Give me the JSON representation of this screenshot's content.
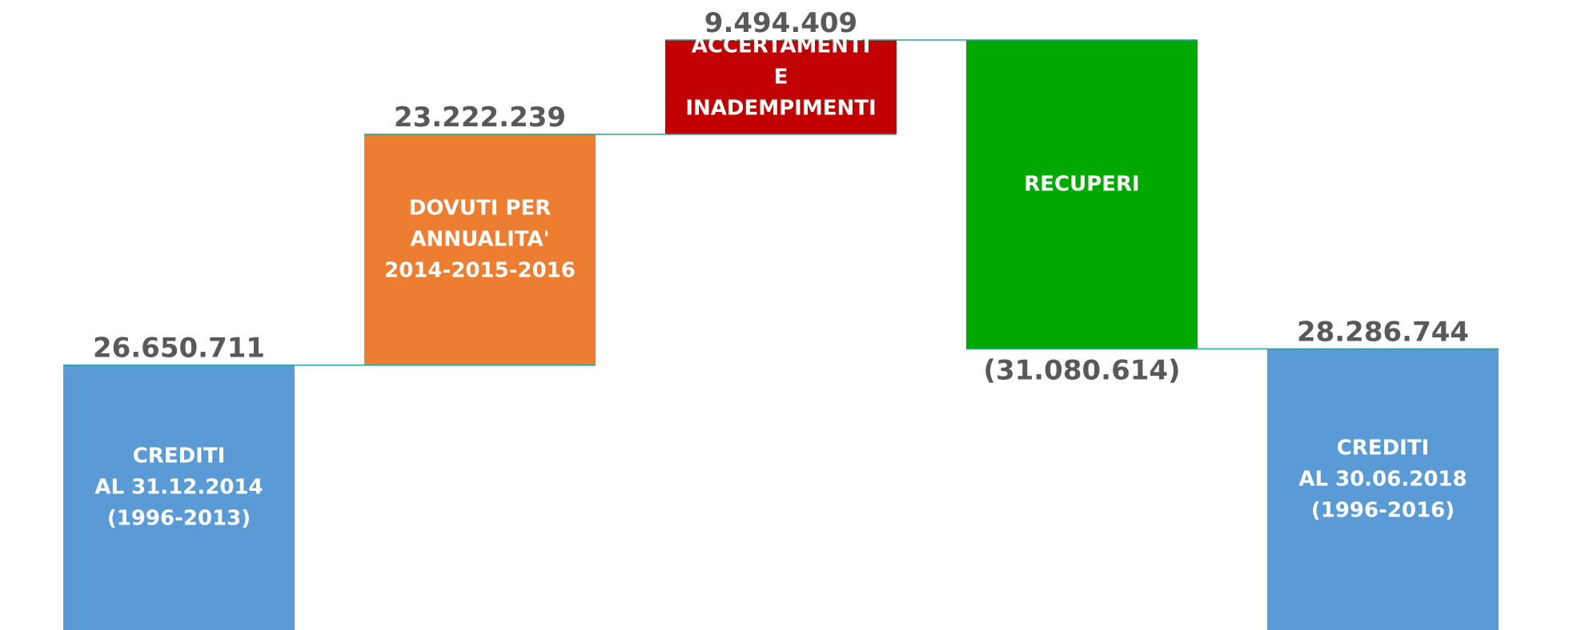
{
  "chart_data": {
    "type": "waterfall",
    "categories": [
      "CREDITI\nAL 31.12.2014\n(1996-2013)",
      "DOVUTI PER\nANNUALITA'\n2014-2015-2016",
      "ACCERTAMENTI\nE\nINADEMPIMENTI",
      "RECUPERI",
      "CREDITI\nAL 30.06.2018\n(1996-2016)"
    ],
    "values": [
      26650711,
      23222239,
      9494409,
      -31080614,
      28286744
    ],
    "value_labels": [
      "26.650.711",
      "23.222.239",
      "9.494.409",
      "(31.080.614)",
      "28.286.744"
    ],
    "totals": [
      true,
      false,
      false,
      false,
      true
    ],
    "colors": [
      "#5b9bd5",
      "#ed7d31",
      "#c00000",
      "#00a800",
      "#5b9bd5"
    ],
    "connector_color": "#2aa198"
  }
}
